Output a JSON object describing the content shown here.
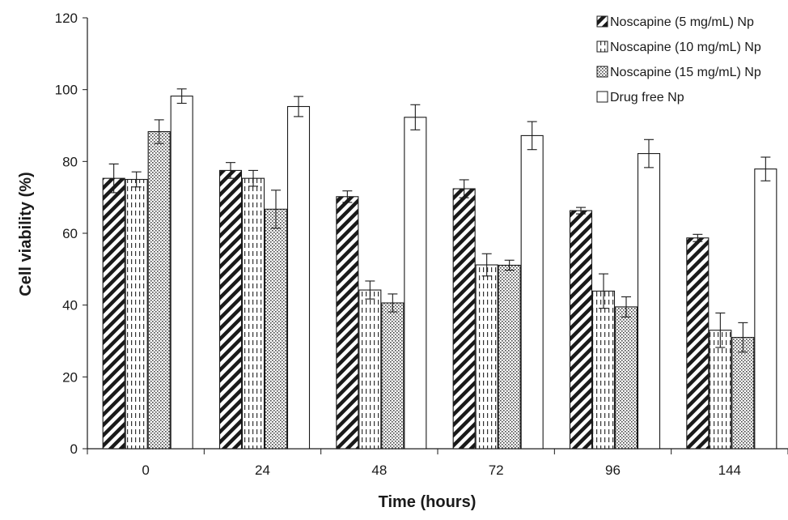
{
  "chart_data": {
    "type": "bar",
    "title": "",
    "xlabel": "Time (hours)",
    "ylabel": "Cell viability (%)",
    "ylim": [
      0,
      120
    ],
    "yticks": [
      0,
      20,
      40,
      60,
      80,
      100,
      120
    ],
    "categories": [
      "0",
      "24",
      "48",
      "72",
      "96",
      "144"
    ],
    "grid": false,
    "legend_position": "top-right",
    "series": [
      {
        "name": "Noscapine (5 mg/mL) Np",
        "pattern": "diagonal-hatch",
        "values": [
          75.3,
          77.5,
          70.2,
          72.4,
          66.3,
          58.7
        ],
        "errors": [
          4.0,
          2.2,
          1.6,
          2.5,
          0.9,
          1.0
        ]
      },
      {
        "name": "Noscapine (10 mg/mL) Np",
        "pattern": "vertical-dashes",
        "values": [
          75.0,
          75.3,
          44.2,
          51.2,
          43.9,
          33.0
        ],
        "errors": [
          2.1,
          2.2,
          2.5,
          3.1,
          4.8,
          4.8
        ]
      },
      {
        "name": "Noscapine (15 mg/mL) Np",
        "pattern": "fine-dots",
        "values": [
          88.3,
          66.7,
          40.6,
          51.1,
          39.5,
          31.0
        ],
        "errors": [
          3.3,
          5.3,
          2.5,
          1.4,
          2.8,
          4.1
        ]
      },
      {
        "name": "Drug free Np",
        "pattern": "blank",
        "values": [
          98.2,
          95.3,
          92.3,
          87.2,
          82.2,
          77.9
        ],
        "errors": [
          2.0,
          2.8,
          3.5,
          3.9,
          3.9,
          3.3
        ]
      }
    ],
    "colors": {
      "bar_stroke": "#1a1a1a",
      "bar_fill": "#ffffff",
      "axis": "#1a1a1a"
    }
  }
}
